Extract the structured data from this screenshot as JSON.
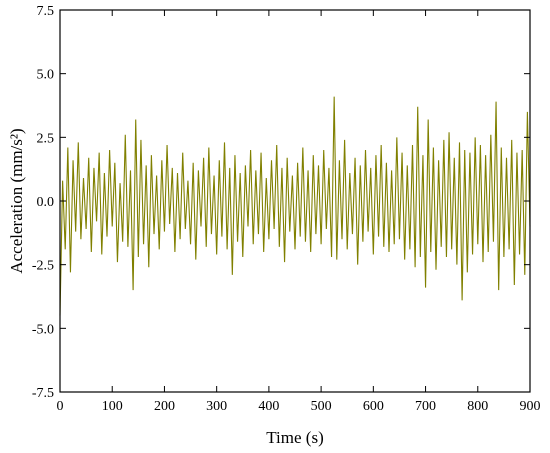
{
  "chart_data": {
    "type": "line",
    "xlabel": "Time (s)",
    "ylabel": "Acceleration (mm/s²)",
    "xlim": [
      0,
      900
    ],
    "ylim": [
      -7.5,
      7.5
    ],
    "xticks": [
      0,
      100,
      200,
      300,
      400,
      500,
      600,
      700,
      800,
      900
    ],
    "yticks": [
      -7.5,
      {
        "value": -5,
        "label": "-5.0"
      },
      -2.5,
      {
        "value": 0,
        "label": "0.0"
      },
      2.5,
      {
        "value": 5,
        "label": "5.0"
      },
      7.5
    ],
    "grid": false,
    "series": [
      {
        "color": "#808000",
        "x": [
          0,
          5,
          10,
          15,
          20,
          25,
          30,
          35,
          40,
          45,
          50,
          55,
          60,
          65,
          70,
          75,
          80,
          85,
          90,
          95,
          100,
          105,
          110,
          115,
          120,
          125,
          130,
          135,
          140,
          145,
          150,
          155,
          160,
          165,
          170,
          175,
          180,
          185,
          190,
          195,
          200,
          205,
          210,
          215,
          220,
          225,
          230,
          235,
          240,
          245,
          250,
          255,
          260,
          265,
          270,
          275,
          280,
          285,
          290,
          295,
          300,
          305,
          310,
          315,
          320,
          325,
          330,
          335,
          340,
          345,
          350,
          355,
          360,
          365,
          370,
          375,
          380,
          385,
          390,
          395,
          400,
          405,
          410,
          415,
          420,
          425,
          430,
          435,
          440,
          445,
          450,
          455,
          460,
          465,
          470,
          475,
          480,
          485,
          490,
          495,
          500,
          505,
          510,
          515,
          520,
          525,
          530,
          535,
          540,
          545,
          550,
          555,
          560,
          565,
          570,
          575,
          580,
          585,
          590,
          595,
          600,
          605,
          610,
          615,
          620,
          625,
          630,
          635,
          640,
          645,
          650,
          655,
          660,
          665,
          670,
          675,
          680,
          685,
          690,
          695,
          700,
          705,
          710,
          715,
          720,
          725,
          730,
          735,
          740,
          745,
          750,
          755,
          760,
          765,
          770,
          775,
          780,
          785,
          790,
          795,
          800,
          805,
          810,
          815,
          820,
          825,
          830,
          835,
          840,
          845,
          850,
          855,
          860,
          865,
          870,
          875,
          880,
          885,
          890,
          895,
          900
        ],
        "values": [
          -4.5,
          0.8,
          -1.9,
          2.1,
          -2.8,
          1.6,
          -1.2,
          2.3,
          -1.5,
          0.9,
          -1.1,
          1.7,
          -2.0,
          1.3,
          -0.8,
          1.9,
          -2.1,
          1.1,
          -1.4,
          2.0,
          -1.0,
          1.5,
          -2.4,
          0.7,
          -1.6,
          2.6,
          -1.8,
          1.2,
          -3.5,
          3.2,
          -2.2,
          2.4,
          -1.7,
          1.4,
          -2.6,
          1.8,
          -1.3,
          1.0,
          -1.9,
          1.6,
          -1.2,
          2.2,
          -0.9,
          1.3,
          -2.0,
          1.1,
          -1.5,
          1.9,
          -1.1,
          0.8,
          -1.7,
          1.5,
          -2.3,
          1.2,
          -1.0,
          1.7,
          -1.8,
          2.1,
          -1.3,
          1.0,
          -2.1,
          1.6,
          -1.4,
          2.3,
          -1.9,
          1.3,
          -2.9,
          1.8,
          -1.6,
          1.1,
          -2.2,
          1.4,
          -1.0,
          2.0,
          -1.7,
          1.2,
          -1.3,
          1.9,
          -2.0,
          0.9,
          -1.5,
          1.6,
          -1.1,
          2.2,
          -1.8,
          1.3,
          -2.4,
          1.7,
          -1.2,
          1.0,
          -1.9,
          1.5,
          -1.4,
          2.1,
          -1.6,
          1.2,
          -2.0,
          1.8,
          -1.3,
          1.4,
          -1.7,
          2.0,
          -1.1,
          1.3,
          -2.2,
          4.1,
          -2.3,
          1.6,
          -1.5,
          2.4,
          -1.9,
          1.1,
          -1.3,
          1.7,
          -2.5,
          1.4,
          -1.6,
          2.0,
          -1.2,
          1.3,
          -2.1,
          1.8,
          -1.4,
          2.2,
          -1.8,
          1.5,
          -2.0,
          1.2,
          -1.7,
          2.5,
          -1.5,
          1.9,
          -2.3,
          1.4,
          -1.9,
          2.2,
          -2.6,
          3.7,
          -2.2,
          1.8,
          -3.4,
          3.2,
          -2.0,
          2.1,
          -2.7,
          1.6,
          -1.8,
          2.4,
          -2.2,
          2.7,
          -1.9,
          1.7,
          -2.5,
          2.3,
          -3.9,
          2.0,
          -2.8,
          1.9,
          -2.1,
          2.5,
          -1.7,
          2.2,
          -2.4,
          1.8,
          -2.0,
          2.6,
          -1.6,
          3.9,
          -3.5,
          2.1,
          -2.2,
          1.7,
          -1.9,
          2.4,
          -3.3,
          1.9,
          -2.1,
          2.0,
          -2.9,
          3.5,
          -1.0
        ]
      }
    ]
  }
}
